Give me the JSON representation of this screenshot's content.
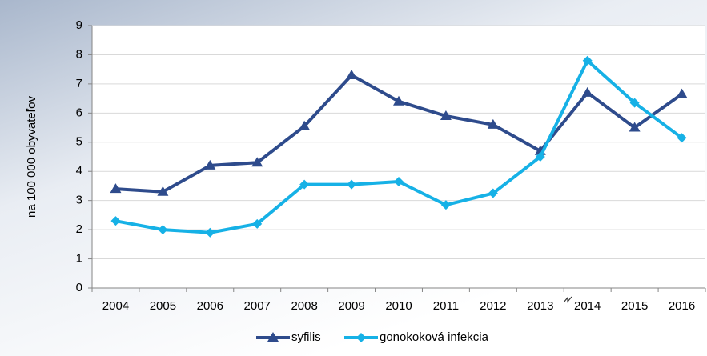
{
  "chart_data": {
    "type": "line",
    "y_label": "na 100 000 obyvateľov",
    "categories": [
      "2004",
      "2005",
      "2006",
      "2007",
      "2008",
      "2009",
      "2010",
      "2011",
      "2012",
      "2013",
      "2014",
      "2015",
      "2016"
    ],
    "series": [
      {
        "name": "syfilis",
        "color": "#2e4b8c",
        "marker": "triangle",
        "values": [
          3.4,
          3.3,
          4.2,
          4.3,
          5.55,
          7.3,
          6.4,
          5.9,
          5.6,
          4.7,
          6.7,
          5.5,
          6.65
        ]
      },
      {
        "name": "gonokoková infekcia",
        "color": "#16b1e6",
        "marker": "diamond",
        "values": [
          2.3,
          2.0,
          1.9,
          2.2,
          3.55,
          3.55,
          3.65,
          2.85,
          3.25,
          4.5,
          7.8,
          6.35,
          5.15
        ]
      }
    ],
    "ylim": [
      0,
      9
    ],
    "yticks": [
      0,
      1,
      2,
      3,
      4,
      5,
      6,
      7,
      8,
      9
    ],
    "grid": true,
    "legend": "bottom"
  }
}
